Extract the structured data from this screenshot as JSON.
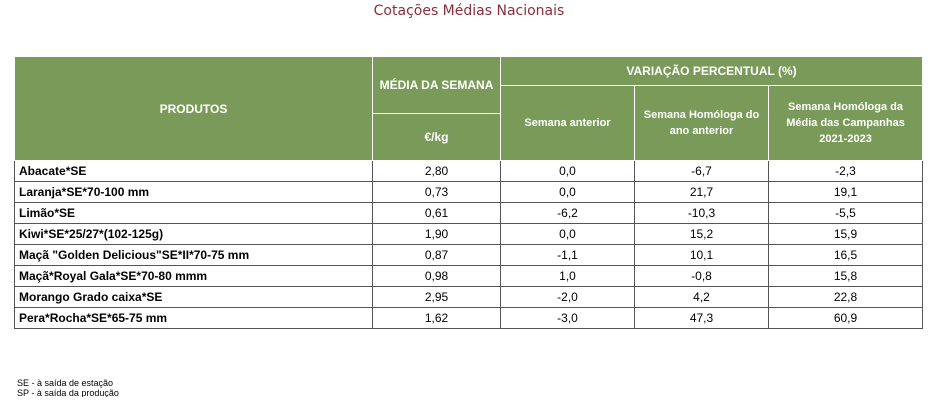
{
  "header": {
    "title": "Cotações Médias Nacionais"
  },
  "table": {
    "headers": {
      "product": "PRODUTOS",
      "weekly_average": "MÉDIA DA SEMANA",
      "unit": "€/kg",
      "variation": "VARIAÇÃO PERCENTUAL (%)",
      "variation_columns": [
        "Semana anterior",
        "Semana Homóloga do ano anterior",
        "Semana Homóloga da Média das Campanhas 2021-2023"
      ]
    },
    "rows": [
      [
        "Abacate*SE",
        "2,80",
        "0,0",
        "-6,7",
        "-2,3"
      ],
      [
        "Laranja*SE*70-100 mm",
        "0,73",
        "0,0",
        "21,7",
        "19,1"
      ],
      [
        "Limão*SE",
        "0,61",
        "-6,2",
        "-10,3",
        "-5,5"
      ],
      [
        "Kiwi*SE*25/27*(102-125g)",
        "1,90",
        "0,0",
        "15,2",
        "15,9"
      ],
      [
        "Maçã \"Golden Delicious\"SE*II*70-75 mm",
        "0,87",
        "-1,1",
        "10,1",
        "16,5"
      ],
      [
        "Maçã*Royal Gala*SE*70-80 mmm",
        "0,98",
        "1,0",
        "-0,8",
        "15,8"
      ],
      [
        "Morango Grado caixa*SE",
        "2,95",
        "-2,0",
        "4,2",
        "22,8"
      ],
      [
        "Pera*Rocha*SE*65-75 mm",
        "1,62",
        "-3,0",
        "47,3",
        "60,9"
      ]
    ]
  },
  "footnotes": [
    "SE - à saída de estação",
    "SP - à saída da produção"
  ]
}
